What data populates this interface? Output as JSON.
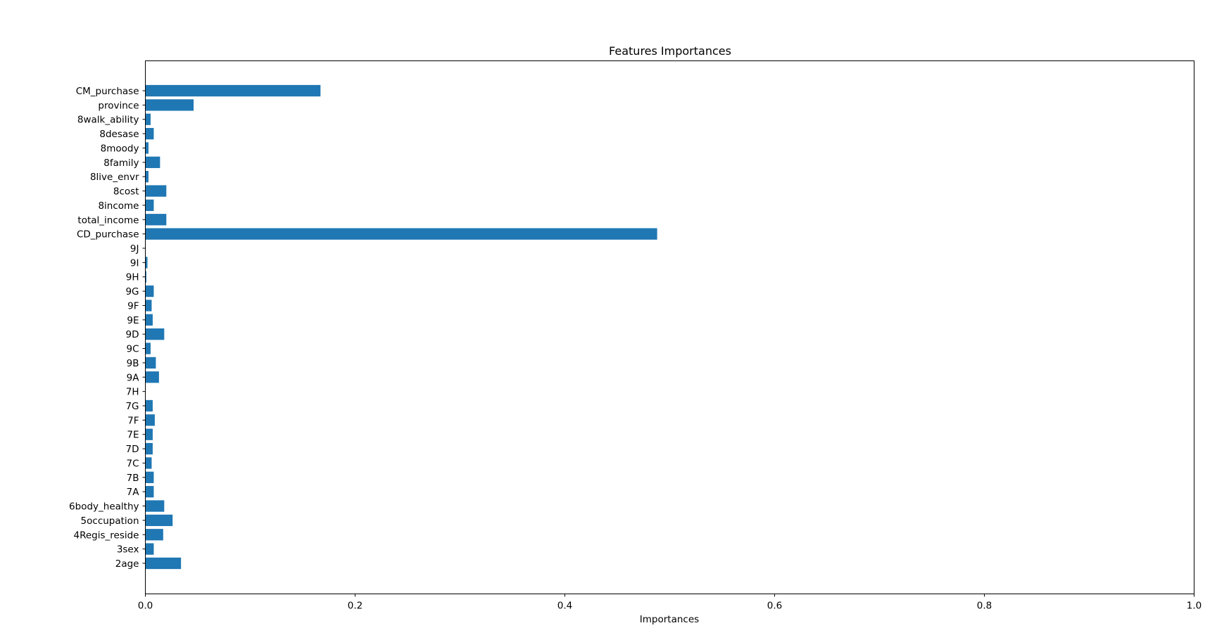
{
  "chart_data": {
    "type": "bar",
    "orientation": "horizontal",
    "title": "Features Importances",
    "xlabel": "Importances",
    "ylabel": "",
    "xlim": [
      0,
      1.0
    ],
    "x_ticks": [
      "0.0",
      "0.2",
      "0.4",
      "0.6",
      "0.8",
      "1.0"
    ],
    "bar_color": "#1f77b4",
    "grid": false,
    "categories": [
      "2age",
      "3sex",
      "4Regis_reside",
      "5occupation",
      "6body_healthy",
      "7A",
      "7B",
      "7C",
      "7D",
      "7E",
      "7F",
      "7G",
      "7H",
      "9A",
      "9B",
      "9C",
      "9D",
      "9E",
      "9F",
      "9G",
      "9H",
      "9I",
      "9J",
      "CD_purchase",
      "total_income",
      "8income",
      "8cost",
      "8live_envr",
      "8family",
      "8moody",
      "8desase",
      "8walk_ability",
      "province",
      "CM_purchase"
    ],
    "values": [
      0.034,
      0.008,
      0.017,
      0.026,
      0.018,
      0.008,
      0.008,
      0.006,
      0.007,
      0.007,
      0.009,
      0.007,
      0.0,
      0.013,
      0.01,
      0.005,
      0.018,
      0.007,
      0.006,
      0.008,
      0.001,
      0.002,
      0.0,
      0.488,
      0.02,
      0.008,
      0.02,
      0.003,
      0.014,
      0.003,
      0.008,
      0.005,
      0.046,
      0.167
    ]
  }
}
